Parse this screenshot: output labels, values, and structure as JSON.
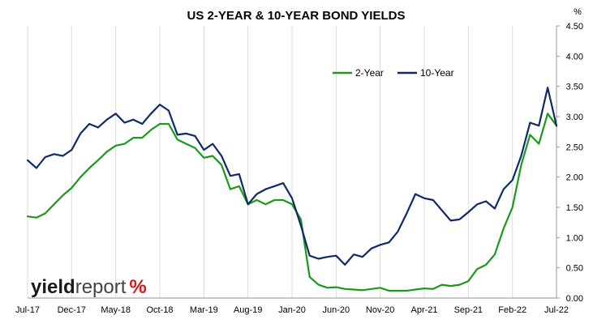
{
  "chart_data": {
    "type": "line",
    "title": "US 2-YEAR & 10-YEAR BOND YIELDS",
    "y_unit_label": "%",
    "ylim": [
      0,
      4.5
    ],
    "y_ticks": [
      "0.00",
      "0.50",
      "1.00",
      "1.50",
      "2.00",
      "2.50",
      "3.00",
      "3.50",
      "4.00",
      "4.50"
    ],
    "y_axis_side": "right",
    "x_ticks": [
      "Jul-17",
      "Dec-17",
      "May-18",
      "Oct-18",
      "Mar-19",
      "Aug-19",
      "Jan-20",
      "Jun-20",
      "Nov-20",
      "Apr-21",
      "Sep-21",
      "Feb-22",
      "Jul-22"
    ],
    "grid": {
      "vertical": true,
      "horizontal": false
    },
    "legend": {
      "placement": "top-right"
    },
    "series": [
      {
        "name": "2-Year",
        "color": "#1a9a1a",
        "x": [
          "Jul-17",
          "Aug-17",
          "Sep-17",
          "Oct-17",
          "Nov-17",
          "Dec-17",
          "Jan-18",
          "Feb-18",
          "Mar-18",
          "Apr-18",
          "May-18",
          "Jun-18",
          "Jul-18",
          "Aug-18",
          "Sep-18",
          "Oct-18",
          "Nov-18",
          "Dec-18",
          "Jan-19",
          "Feb-19",
          "Mar-19",
          "Apr-19",
          "May-19",
          "Jun-19",
          "Jul-19",
          "Aug-19",
          "Sep-19",
          "Oct-19",
          "Nov-19",
          "Dec-19",
          "Jan-20",
          "Feb-20",
          "Mar-20",
          "Apr-20",
          "May-20",
          "Jun-20",
          "Jul-20",
          "Aug-20",
          "Sep-20",
          "Oct-20",
          "Nov-20",
          "Dec-20",
          "Jan-21",
          "Feb-21",
          "Mar-21",
          "Apr-21",
          "May-21",
          "Jun-21",
          "Jul-21",
          "Aug-21",
          "Sep-21",
          "Oct-21",
          "Nov-21",
          "Dec-21",
          "Jan-22",
          "Feb-22",
          "Mar-22",
          "Apr-22",
          "May-22",
          "Jun-22",
          "Jul-22"
        ],
        "values": [
          1.35,
          1.33,
          1.4,
          1.55,
          1.7,
          1.82,
          2.0,
          2.15,
          2.28,
          2.42,
          2.52,
          2.55,
          2.65,
          2.65,
          2.78,
          2.88,
          2.88,
          2.62,
          2.55,
          2.48,
          2.32,
          2.35,
          2.2,
          1.8,
          1.85,
          1.55,
          1.62,
          1.55,
          1.62,
          1.62,
          1.55,
          1.3,
          0.35,
          0.22,
          0.17,
          0.18,
          0.15,
          0.14,
          0.13,
          0.15,
          0.17,
          0.12,
          0.12,
          0.12,
          0.14,
          0.16,
          0.15,
          0.22,
          0.2,
          0.22,
          0.28,
          0.48,
          0.55,
          0.72,
          1.15,
          1.5,
          2.2,
          2.7,
          2.55,
          3.05,
          2.85
        ]
      },
      {
        "name": "10-Year",
        "color": "#0e2a6b",
        "x": [
          "Jul-17",
          "Aug-17",
          "Sep-17",
          "Oct-17",
          "Nov-17",
          "Dec-17",
          "Jan-18",
          "Feb-18",
          "Mar-18",
          "Apr-18",
          "May-18",
          "Jun-18",
          "Jul-18",
          "Aug-18",
          "Sep-18",
          "Oct-18",
          "Nov-18",
          "Dec-18",
          "Jan-19",
          "Feb-19",
          "Mar-19",
          "Apr-19",
          "May-19",
          "Jun-19",
          "Jul-19",
          "Aug-19",
          "Sep-19",
          "Oct-19",
          "Nov-19",
          "Dec-19",
          "Jan-20",
          "Feb-20",
          "Mar-20",
          "Apr-20",
          "May-20",
          "Jun-20",
          "Jul-20",
          "Aug-20",
          "Sep-20",
          "Oct-20",
          "Nov-20",
          "Dec-20",
          "Jan-21",
          "Feb-21",
          "Mar-21",
          "Apr-21",
          "May-21",
          "Jun-21",
          "Jul-21",
          "Aug-21",
          "Sep-21",
          "Oct-21",
          "Nov-21",
          "Dec-21",
          "Jan-22",
          "Feb-22",
          "Mar-22",
          "Apr-22",
          "May-22",
          "Jun-22",
          "Jul-22"
        ],
        "values": [
          2.28,
          2.15,
          2.33,
          2.38,
          2.35,
          2.45,
          2.72,
          2.88,
          2.82,
          2.95,
          3.05,
          2.9,
          2.95,
          2.88,
          3.05,
          3.2,
          3.1,
          2.7,
          2.72,
          2.68,
          2.45,
          2.55,
          2.35,
          2.02,
          2.05,
          1.55,
          1.72,
          1.8,
          1.85,
          1.9,
          1.65,
          1.2,
          0.7,
          0.65,
          0.68,
          0.7,
          0.55,
          0.72,
          0.68,
          0.82,
          0.88,
          0.92,
          1.1,
          1.4,
          1.72,
          1.65,
          1.62,
          1.45,
          1.28,
          1.3,
          1.42,
          1.55,
          1.6,
          1.48,
          1.8,
          1.95,
          2.35,
          2.9,
          2.85,
          3.48,
          2.85
        ]
      }
    ]
  },
  "branding": {
    "logo_word_dark": "yield",
    "logo_word_light": "report",
    "logo_symbol": "%",
    "logo_dark_color": "#1a1a1a",
    "logo_light_color": "#444444",
    "logo_symbol_color": "#d11a1a"
  }
}
